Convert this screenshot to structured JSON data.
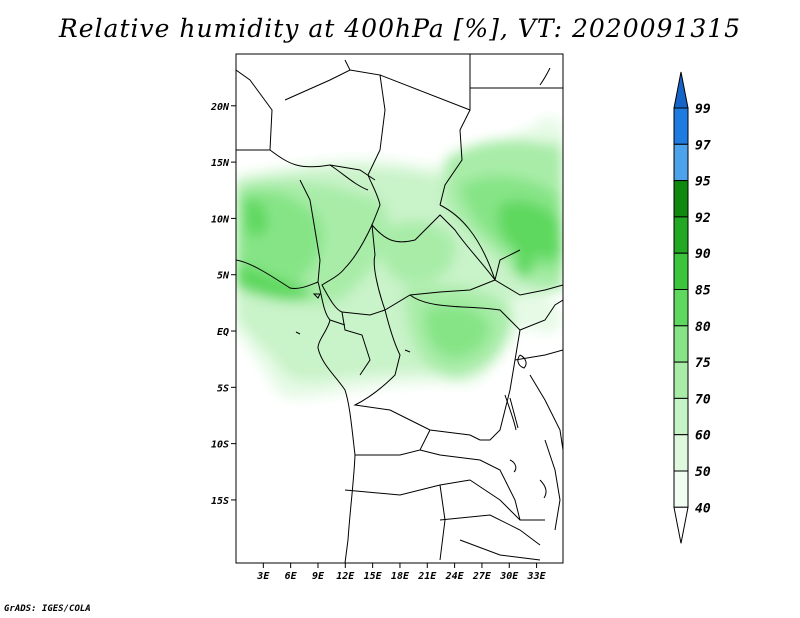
{
  "map": {
    "title": "Relative humidity at 400hPa [%], VT: 2020091315",
    "credit": "GrADS: IGES/COLA",
    "lon_labels": [
      "3E",
      "6E",
      "9E",
      "12E",
      "15E",
      "18E",
      "21E",
      "24E",
      "27E",
      "30E",
      "33E"
    ],
    "lat_labels": [
      "20N",
      "15N",
      "10N",
      "5N",
      "EQ",
      "5S",
      "10S",
      "15S"
    ],
    "colorbar": {
      "levels": [
        "99",
        "97",
        "95",
        "92",
        "90",
        "85",
        "80",
        "75",
        "70",
        "60",
        "50",
        "40"
      ],
      "colors": [
        "#1565c8",
        "#1e7be0",
        "#4ca3ec",
        "#0f8a0f",
        "#22a822",
        "#3cc43c",
        "#5ed85e",
        "#86e486",
        "#a8eca8",
        "#c6f3c6",
        "#def9de",
        "#f0fdf0"
      ]
    }
  }
}
